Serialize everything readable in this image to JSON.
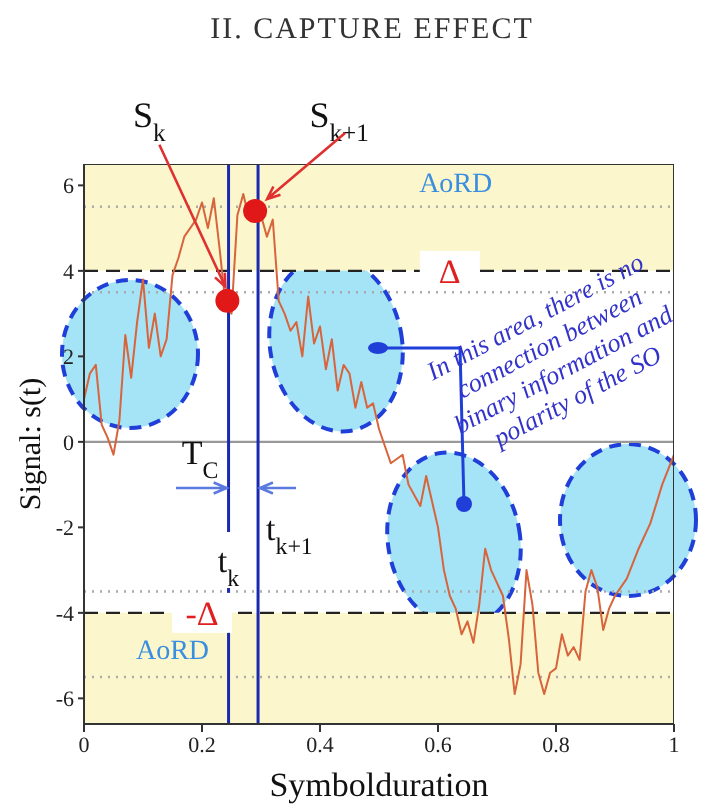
{
  "chart_data": {
    "type": "line",
    "title": "II. CAPTURE EFFECT",
    "xlabel": "Symbolduration",
    "ylabel": "Signal: s(t)",
    "xlim": [
      0,
      1
    ],
    "xticks": [
      0,
      0.2,
      0.4,
      0.6,
      0.8,
      1
    ],
    "ylim": [
      -6.6,
      6.5
    ],
    "yticks": [
      -6,
      -4,
      -2,
      0,
      2,
      4,
      6
    ],
    "series": [
      {
        "color": "#d8643c",
        "x": [
          0,
          0.01,
          0.02,
          0.03,
          0.04,
          0.05,
          0.06,
          0.07,
          0.08,
          0.09,
          0.1,
          0.11,
          0.12,
          0.13,
          0.14,
          0.15,
          0.16,
          0.17,
          0.18,
          0.19,
          0.2,
          0.21,
          0.22,
          0.23,
          0.24,
          0.25,
          0.26,
          0.27,
          0.28,
          0.29,
          0.3,
          0.31,
          0.32,
          0.33,
          0.34,
          0.35,
          0.36,
          0.37,
          0.38,
          0.39,
          0.4,
          0.41,
          0.42,
          0.43,
          0.44,
          0.45,
          0.46,
          0.47,
          0.48,
          0.49,
          0.5,
          0.52,
          0.54,
          0.55,
          0.57,
          0.58,
          0.6,
          0.61,
          0.62,
          0.63,
          0.64,
          0.65,
          0.66,
          0.67,
          0.68,
          0.69,
          0.7,
          0.71,
          0.72,
          0.73,
          0.74,
          0.75,
          0.76,
          0.77,
          0.78,
          0.79,
          0.8,
          0.81,
          0.82,
          0.83,
          0.84,
          0.85,
          0.86,
          0.87,
          0.88,
          0.89,
          0.9,
          0.92,
          0.94,
          0.96,
          0.98,
          1
        ],
        "values": [
          1.0,
          1.6,
          1.8,
          0.4,
          0.1,
          -0.3,
          0.5,
          2.5,
          1.5,
          2.8,
          3.8,
          2.2,
          3.0,
          2.0,
          2.4,
          3.9,
          4.3,
          4.8,
          5.0,
          5.2,
          5.6,
          5.0,
          5.7,
          4.5,
          3.2,
          3.0,
          5.3,
          5.8,
          5.2,
          5.5,
          5.3,
          4.8,
          5.2,
          3.3,
          3.0,
          2.6,
          2.8,
          2.0,
          3.4,
          2.3,
          2.7,
          1.7,
          2.4,
          1.2,
          1.8,
          1.6,
          0.8,
          1.4,
          0.8,
          0.9,
          0.3,
          -0.5,
          -0.3,
          -1.0,
          -1.5,
          -0.8,
          -2.0,
          -3.0,
          -3.6,
          -3.9,
          -4.5,
          -4.2,
          -4.7,
          -3.8,
          -2.5,
          -3.0,
          -3.3,
          -3.6,
          -4.6,
          -5.9,
          -5.2,
          -3.0,
          -3.8,
          -5.4,
          -5.9,
          -5.4,
          -5.3,
          -4.5,
          -5.0,
          -4.8,
          -5.1,
          -3.5,
          -3.0,
          -3.4,
          -4.4,
          -3.9,
          -3.6,
          -3.2,
          -2.5,
          -1.9,
          -1.0,
          -0.3
        ]
      },
      {
        "type": "scatter",
        "color": "#e01818",
        "marker": "circle",
        "x": [
          0.243,
          0.29
        ],
        "values": [
          3.3,
          5.4
        ]
      }
    ],
    "ref_lines": [
      {
        "axis": "y",
        "value": 0,
        "color": "#999999",
        "line_style": "solid"
      },
      {
        "axis": "y",
        "value": 4,
        "label": "Δ",
        "color": "#222222",
        "line_style": "dashed"
      },
      {
        "axis": "y",
        "value": -4,
        "label": "-Δ",
        "color": "#222222",
        "line_style": "dashed"
      },
      {
        "axis": "y",
        "value": 5.5,
        "color": "#aaaaaa",
        "line_style": "dotted"
      },
      {
        "axis": "y",
        "value": 3.5,
        "color": "#aaaaaa",
        "line_style": "dotted"
      },
      {
        "axis": "y",
        "value": -3.5,
        "color": "#aaaaaa",
        "line_style": "dotted"
      },
      {
        "axis": "y",
        "value": -5.5,
        "color": "#aaaaaa",
        "line_style": "dotted"
      },
      {
        "axis": "x",
        "value": 0.245,
        "label": "t$_{k}$",
        "color": "#1a2ab0",
        "line_style": "solid"
      },
      {
        "axis": "x",
        "value": 0.295,
        "label": "t$_{k+1}$",
        "color": "#1a2ab0",
        "line_style": "solid"
      }
    ],
    "bands": [
      {
        "axis": "y",
        "from": 4,
        "to": 6.5,
        "label": "AoRD",
        "color": "#fbf6cc"
      },
      {
        "axis": "y",
        "from": -6.6,
        "to": -4,
        "label": "AoRD",
        "color": "#fbf6cc"
      }
    ],
    "annotations": [
      {
        "text": "S$_{k}$",
        "x": 0.243,
        "y": 3.3
      },
      {
        "text": "S$_{k+1}$",
        "x": 0.29,
        "y": 5.4
      },
      "T$_{C}$",
      "In this area, there is no connection between binary information and polarity of the SO"
    ]
  }
}
